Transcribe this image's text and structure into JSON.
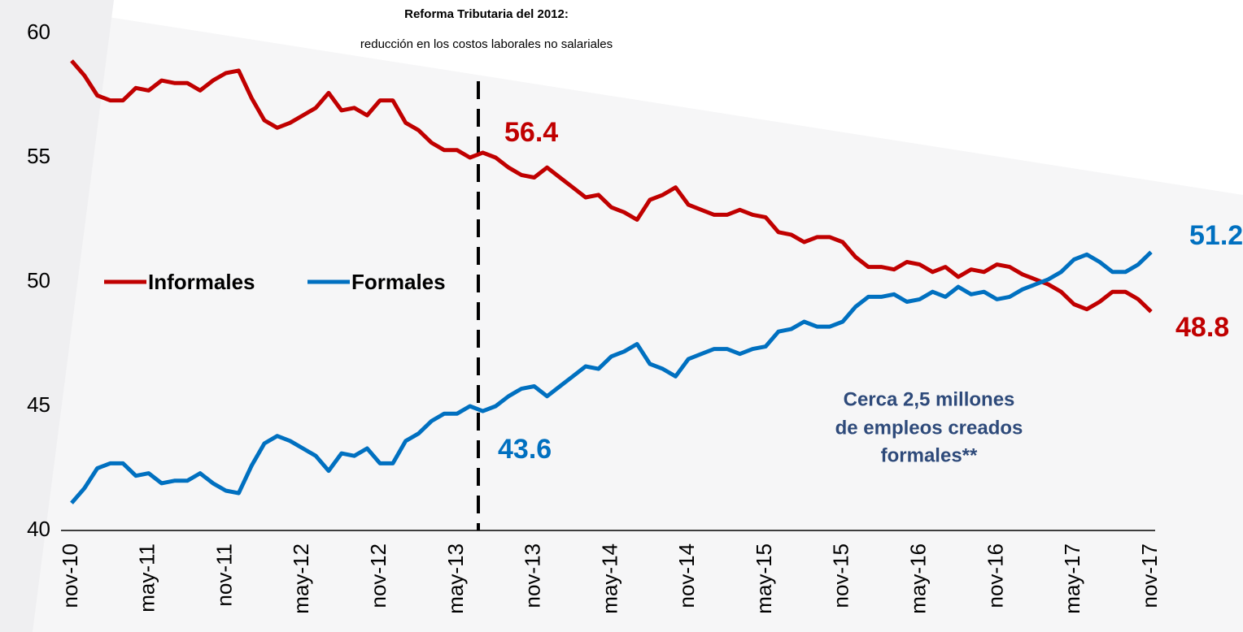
{
  "chart_data": {
    "type": "line",
    "title": "Reforma Tributaria del 2012:",
    "subtitle": "reducción en los costos laborales no salariales",
    "categories": [
      "nov-10",
      null,
      null,
      null,
      null,
      null,
      "may-11",
      null,
      null,
      null,
      null,
      null,
      "nov-11",
      null,
      null,
      null,
      null,
      null,
      "may-12",
      null,
      null,
      null,
      null,
      null,
      "nov-12",
      null,
      null,
      null,
      null,
      null,
      "may-13",
      null,
      null,
      null,
      null,
      null,
      "nov-13",
      null,
      null,
      null,
      null,
      null,
      "may-14",
      null,
      null,
      null,
      null,
      null,
      "nov-14",
      null,
      null,
      null,
      null,
      null,
      "may-15",
      null,
      null,
      null,
      null,
      null,
      "nov-15",
      null,
      null,
      null,
      null,
      null,
      "may-16",
      null,
      null,
      null,
      null,
      null,
      "nov-16",
      null,
      null,
      null,
      null,
      null,
      "may-17",
      null,
      null,
      null,
      null,
      null,
      "nov-17"
    ],
    "series": [
      {
        "name": "Informales",
        "color": "#c00000",
        "values": [
          58.9,
          58.3,
          57.5,
          57.3,
          57.3,
          57.8,
          57.7,
          58.1,
          58.0,
          58.0,
          57.7,
          58.1,
          58.4,
          58.5,
          57.4,
          56.5,
          56.2,
          56.4,
          56.7,
          57.0,
          57.6,
          56.9,
          57.0,
          56.7,
          57.3,
          57.3,
          56.4,
          56.1,
          55.6,
          55.3,
          55.3,
          55.0,
          55.2,
          55.0,
          54.6,
          54.3,
          54.2,
          54.6,
          54.2,
          53.8,
          53.4,
          53.5,
          53.0,
          52.8,
          52.5,
          53.3,
          53.5,
          53.8,
          53.1,
          52.9,
          52.7,
          52.7,
          52.9,
          52.7,
          52.6,
          52.0,
          51.9,
          51.6,
          51.8,
          51.8,
          51.6,
          51.0,
          50.6,
          50.6,
          50.5,
          50.8,
          50.7,
          50.4,
          50.6,
          50.2,
          50.5,
          50.4,
          50.7,
          50.6,
          50.3,
          50.1,
          49.9,
          49.6,
          49.1,
          48.9,
          49.2,
          49.6,
          49.6,
          49.3,
          48.8
        ]
      },
      {
        "name": "Formales",
        "color": "#0070c0",
        "values": [
          41.1,
          41.7,
          42.5,
          42.7,
          42.7,
          42.2,
          42.3,
          41.9,
          42.0,
          42.0,
          42.3,
          41.9,
          41.6,
          41.5,
          42.6,
          43.5,
          43.8,
          43.6,
          43.3,
          43.0,
          42.4,
          43.1,
          43.0,
          43.3,
          42.7,
          42.7,
          43.6,
          43.9,
          44.4,
          44.7,
          44.7,
          45.0,
          44.8,
          45.0,
          45.4,
          45.7,
          45.8,
          45.4,
          45.8,
          46.2,
          46.6,
          46.5,
          47.0,
          47.2,
          47.5,
          46.7,
          46.5,
          46.2,
          46.9,
          47.1,
          47.3,
          47.3,
          47.1,
          47.3,
          47.4,
          48.0,
          48.1,
          48.4,
          48.2,
          48.2,
          48.4,
          49.0,
          49.4,
          49.4,
          49.5,
          49.2,
          49.3,
          49.6,
          49.4,
          49.8,
          49.5,
          49.6,
          49.3,
          49.4,
          49.7,
          49.9,
          50.1,
          50.4,
          50.9,
          51.1,
          50.8,
          50.4,
          50.4,
          50.7,
          51.2
        ]
      }
    ],
    "ylim": [
      40,
      60
    ],
    "yticks": [
      40,
      45,
      50,
      55,
      60
    ],
    "legend": "left",
    "annotations": {
      "informales_start": "56.4",
      "formales_start": "43.6",
      "formales_end": "51.2",
      "informales_end": "48.8",
      "note": [
        "Cerca 2,5 millones",
        "de empleos creados",
        "formales**"
      ]
    }
  }
}
